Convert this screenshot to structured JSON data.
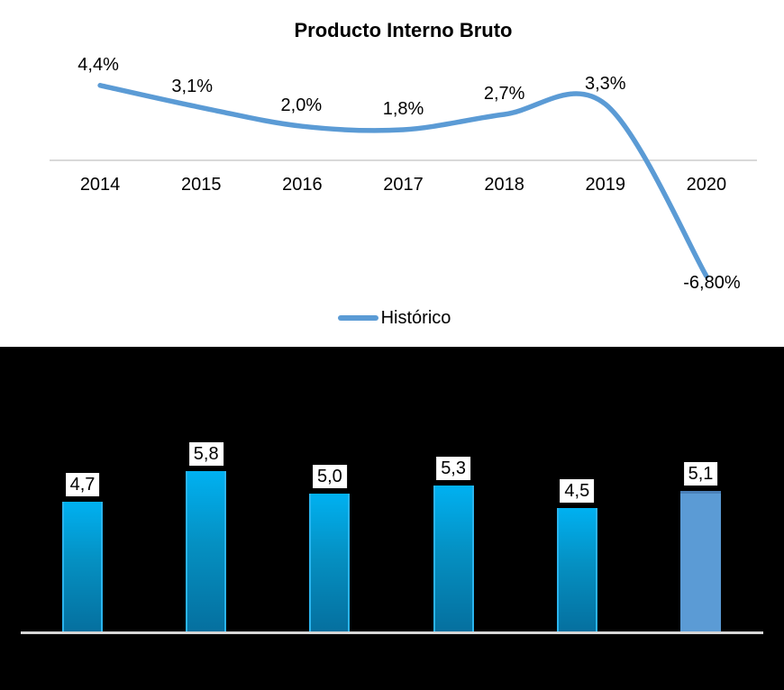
{
  "top_chart": {
    "title": "Producto Interno Bruto",
    "legend_label": "Histórico"
  },
  "chart_data": [
    {
      "type": "line",
      "title": "Producto Interno Bruto",
      "categories": [
        "2014",
        "2015",
        "2016",
        "2017",
        "2018",
        "2019",
        "2020"
      ],
      "series": [
        {
          "name": "Histórico",
          "values": [
            4.4,
            3.1,
            2.0,
            1.8,
            2.7,
            3.3,
            -6.8
          ]
        }
      ],
      "data_labels": [
        "4,4%",
        "3,1%",
        "2,0%",
        "1,8%",
        "2,7%",
        "3,3%",
        "-6,80%"
      ],
      "legend": {
        "position": "bottom",
        "entries": [
          "Histórico"
        ]
      },
      "smooth": true,
      "grid": false,
      "line_color": "#5B9BD5",
      "axis_color": "#D9D9D9",
      "background": "#FFFFFF",
      "xlabel": "",
      "ylabel": ""
    },
    {
      "type": "bar",
      "categories": [
        "",
        "",
        "",
        "",
        "",
        ""
      ],
      "values": [
        4.7,
        5.8,
        5.0,
        5.3,
        4.5,
        5.1
      ],
      "data_labels": [
        "4,7",
        "5,8",
        "5,0",
        "5,3",
        "4,5",
        "5,1"
      ],
      "title": "",
      "xlabel": "",
      "ylabel": "",
      "ylim": [
        0,
        6.5
      ],
      "grid": false,
      "bar_gradient_top": "#00B1F1",
      "bar_gradient_bottom": "#056F9E",
      "bar_edge_color": "#2AB4EE",
      "last_bar_color": "#5B9BD5",
      "label_box_bg": "#FFFFFF",
      "label_text_color": "#000000",
      "baseline_color": "#D6D6D6",
      "background": "#000000"
    }
  ]
}
